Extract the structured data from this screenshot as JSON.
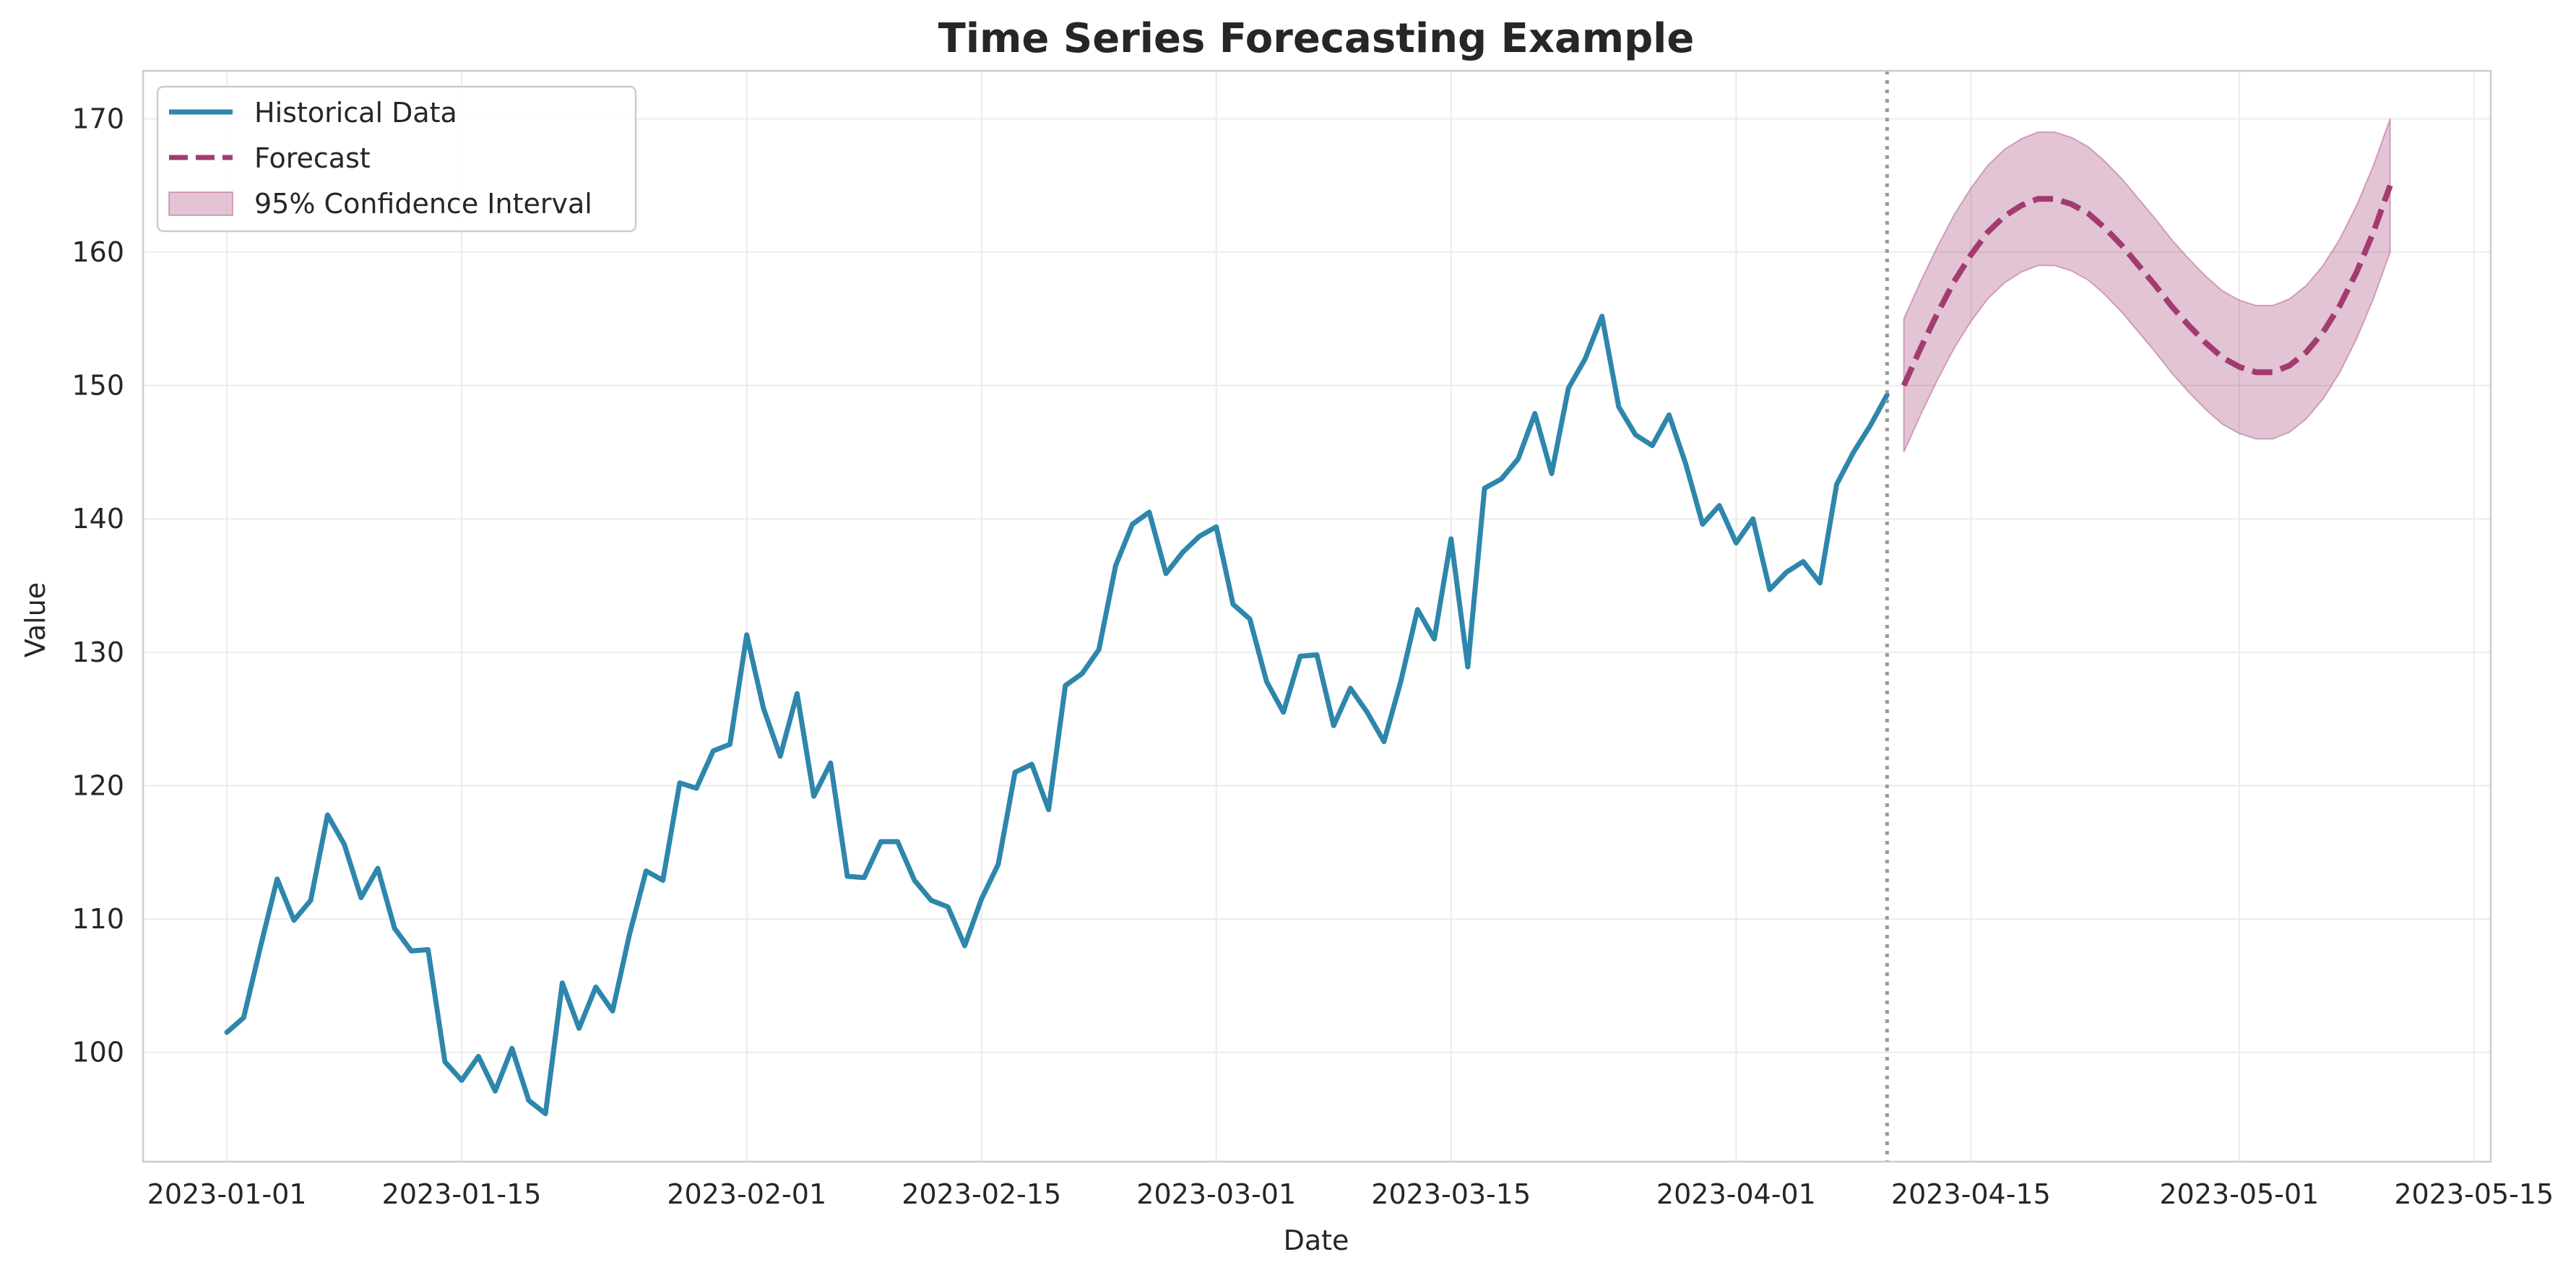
{
  "chart_data": {
    "type": "line",
    "title": "Time Series Forecasting Example",
    "xlabel": "Date",
    "ylabel": "Value",
    "x_range": [
      "2022-12-27",
      "2023-05-16"
    ],
    "ylim": [
      91.8,
      173.6
    ],
    "grid": true,
    "legend_position": "top-left",
    "x_ticks": [
      "2023-01-01",
      "2023-01-15",
      "2023-02-01",
      "2023-02-15",
      "2023-03-01",
      "2023-03-15",
      "2023-04-01",
      "2023-04-15",
      "2023-05-01",
      "2023-05-15"
    ],
    "y_ticks": [
      100,
      110,
      120,
      130,
      140,
      150,
      160,
      170
    ],
    "forecast_start_marker": "2023-04-10",
    "series": [
      {
        "name": "Historical Data",
        "color": "#2e86ab",
        "style": "solid",
        "start_date": "2023-01-01",
        "end_date": "2023-04-10",
        "step": "1 day",
        "values": [
          101.5,
          102.6,
          107.9,
          113.0,
          109.9,
          111.4,
          117.8,
          115.6,
          111.6,
          113.8,
          109.3,
          107.6,
          107.7,
          99.3,
          97.9,
          99.7,
          97.1,
          100.3,
          96.4,
          95.4,
          105.2,
          101.8,
          104.9,
          103.1,
          108.8,
          113.6,
          112.9,
          120.2,
          119.8,
          122.6,
          123.1,
          131.3,
          125.8,
          122.2,
          126.9,
          119.2,
          121.7,
          113.2,
          113.1,
          115.8,
          115.8,
          112.9,
          111.4,
          110.9,
          108.0,
          111.5,
          114.1,
          121.0,
          121.6,
          118.2,
          127.5,
          128.4,
          130.2,
          136.5,
          139.6,
          140.5,
          135.9,
          137.5,
          138.7,
          139.4,
          133.6,
          132.5,
          127.8,
          125.5,
          129.7,
          129.8,
          124.5,
          127.3,
          125.5,
          123.3,
          127.8,
          133.2,
          131.0,
          138.5,
          128.9,
          142.3,
          143.0,
          144.5,
          147.9,
          143.4,
          149.8,
          152.0,
          155.2,
          148.4,
          146.3,
          145.5,
          147.8,
          144.1,
          139.6,
          141.0,
          138.2,
          140.0,
          134.7,
          136.0,
          136.8,
          135.2,
          142.6,
          145.0,
          147.0,
          149.3
        ]
      },
      {
        "name": "Forecast",
        "color": "#a23b72",
        "style": "dashed",
        "start_date": "2023-04-11",
        "end_date": "2023-05-10",
        "step": "1 day",
        "values": [
          150.0,
          152.8,
          155.4,
          157.8,
          159.8,
          161.5,
          162.7,
          163.5,
          164.0,
          164.0,
          163.6,
          162.9,
          161.8,
          160.5,
          159.0,
          157.5,
          155.9,
          154.5,
          153.2,
          152.1,
          151.4,
          151.0,
          151.0,
          151.5,
          152.5,
          154.0,
          156.0,
          158.5,
          161.5,
          165.0
        ],
        "ci_lower": [
          145.0,
          147.8,
          150.4,
          152.8,
          154.8,
          156.5,
          157.7,
          158.5,
          159.0,
          159.0,
          158.6,
          157.9,
          156.8,
          155.5,
          154.0,
          152.5,
          150.9,
          149.5,
          148.2,
          147.1,
          146.4,
          146.0,
          146.0,
          146.5,
          147.5,
          149.0,
          151.0,
          153.5,
          156.5,
          160.0
        ],
        "ci_upper": [
          155.0,
          157.8,
          160.4,
          162.8,
          164.8,
          166.5,
          167.7,
          168.5,
          169.0,
          169.0,
          168.6,
          167.9,
          166.8,
          165.5,
          164.0,
          162.5,
          160.9,
          159.5,
          158.2,
          157.1,
          156.4,
          156.0,
          156.0,
          156.5,
          157.5,
          159.0,
          161.0,
          163.5,
          166.5,
          170.0
        ]
      },
      {
        "name": "95% Confidence Interval",
        "color": "#a23b72",
        "style": "band"
      }
    ]
  }
}
